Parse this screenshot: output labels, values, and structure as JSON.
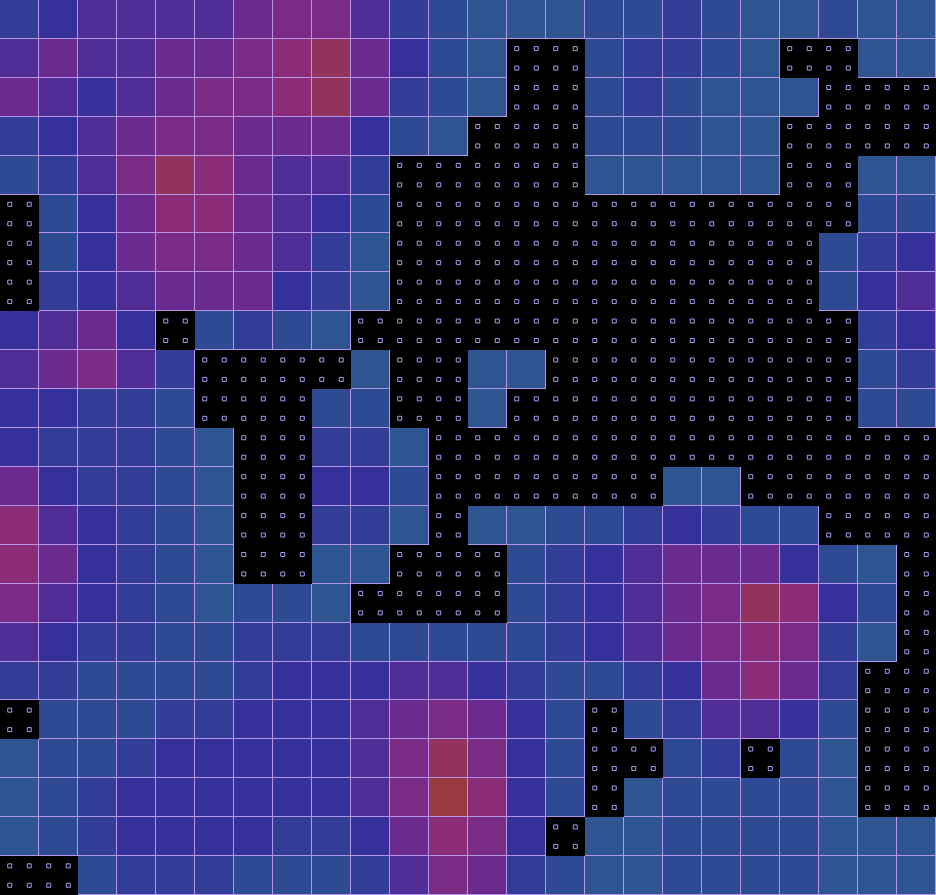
{
  "chart_data": {
    "type": "heatmap",
    "tick_labels": false,
    "zlim": [
      0,
      10
    ],
    "cells": [
      [
        3,
        4,
        5,
        5,
        5,
        5,
        6,
        7,
        7,
        5,
        3,
        2,
        1,
        1,
        1,
        2,
        2,
        3,
        2,
        1,
        1,
        2,
        1,
        1
      ],
      [
        5,
        6,
        5,
        5,
        6,
        6,
        7,
        8,
        9,
        6,
        4,
        2,
        1,
        null,
        null,
        2,
        3,
        3,
        2,
        1,
        null,
        null,
        1,
        1
      ],
      [
        6,
        5,
        4,
        5,
        6,
        7,
        7,
        8,
        9,
        6,
        3,
        2,
        1,
        null,
        null,
        2,
        3,
        2,
        1,
        1,
        1,
        null,
        null,
        null
      ],
      [
        3,
        4,
        5,
        6,
        7,
        7,
        6,
        6,
        6,
        4,
        2,
        1,
        null,
        null,
        null,
        2,
        2,
        2,
        1,
        1,
        null,
        null,
        null,
        null
      ],
      [
        2,
        3,
        5,
        7,
        9,
        8,
        6,
        5,
        5,
        3,
        null,
        null,
        null,
        null,
        null,
        1,
        1,
        1,
        1,
        1,
        null,
        null,
        1,
        1
      ],
      [
        null,
        2,
        4,
        6,
        8,
        8,
        6,
        5,
        4,
        2,
        null,
        null,
        null,
        null,
        null,
        null,
        null,
        null,
        null,
        null,
        null,
        null,
        2,
        2
      ],
      [
        null,
        2,
        4,
        6,
        7,
        7,
        6,
        5,
        3,
        1,
        null,
        null,
        null,
        null,
        null,
        null,
        null,
        null,
        null,
        null,
        null,
        2,
        3,
        4
      ],
      [
        null,
        3,
        4,
        5,
        6,
        6,
        6,
        4,
        3,
        1,
        null,
        null,
        null,
        null,
        null,
        null,
        null,
        null,
        null,
        null,
        null,
        2,
        4,
        5
      ],
      [
        4,
        5,
        6,
        4,
        null,
        2,
        3,
        2,
        1,
        null,
        null,
        null,
        null,
        null,
        null,
        null,
        null,
        null,
        null,
        null,
        null,
        null,
        3,
        4
      ],
      [
        5,
        6,
        7,
        5,
        3,
        null,
        null,
        null,
        null,
        1,
        null,
        null,
        1,
        1,
        null,
        null,
        null,
        null,
        null,
        null,
        null,
        null,
        2,
        3
      ],
      [
        4,
        4,
        3,
        3,
        2,
        null,
        null,
        null,
        2,
        2,
        null,
        null,
        1,
        null,
        null,
        null,
        null,
        null,
        null,
        null,
        null,
        null,
        2,
        2
      ],
      [
        4,
        3,
        3,
        3,
        2,
        1,
        null,
        null,
        3,
        3,
        1,
        null,
        null,
        null,
        null,
        null,
        null,
        null,
        null,
        null,
        null,
        null,
        null,
        null
      ],
      [
        6,
        4,
        3,
        3,
        2,
        1,
        null,
        null,
        4,
        4,
        2,
        null,
        null,
        null,
        null,
        null,
        null,
        1,
        1,
        null,
        null,
        null,
        null,
        null
      ],
      [
        8,
        5,
        4,
        3,
        2,
        1,
        null,
        null,
        3,
        3,
        1,
        null,
        1,
        1,
        2,
        2,
        3,
        4,
        3,
        2,
        2,
        null,
        null,
        null
      ],
      [
        8,
        6,
        4,
        3,
        2,
        1,
        null,
        null,
        1,
        1,
        null,
        null,
        null,
        2,
        3,
        4,
        5,
        6,
        6,
        6,
        4,
        2,
        1,
        null
      ],
      [
        7,
        5,
        4,
        3,
        2,
        1,
        2,
        2,
        1,
        null,
        null,
        null,
        null,
        2,
        3,
        4,
        5,
        6,
        7,
        9,
        8,
        4,
        2,
        null
      ],
      [
        5,
        4,
        3,
        3,
        2,
        2,
        3,
        3,
        3,
        2,
        2,
        2,
        2,
        2,
        3,
        4,
        5,
        6,
        7,
        8,
        7,
        3,
        1,
        null
      ],
      [
        3,
        3,
        2,
        2,
        2,
        2,
        3,
        4,
        4,
        4,
        5,
        5,
        4,
        3,
        2,
        2,
        3,
        4,
        6,
        8,
        6,
        3,
        null,
        null
      ],
      [
        null,
        2,
        2,
        2,
        3,
        3,
        4,
        4,
        4,
        5,
        6,
        7,
        6,
        4,
        2,
        null,
        2,
        3,
        5,
        5,
        4,
        2,
        null,
        null
      ],
      [
        1,
        2,
        2,
        3,
        4,
        4,
        4,
        4,
        4,
        5,
        7,
        9,
        7,
        4,
        2,
        null,
        null,
        2,
        3,
        null,
        2,
        1,
        null,
        null
      ],
      [
        1,
        2,
        3,
        4,
        4,
        4,
        4,
        4,
        4,
        5,
        7,
        10,
        8,
        4,
        2,
        null,
        1,
        2,
        2,
        2,
        2,
        1,
        null,
        null
      ],
      [
        1,
        2,
        3,
        4,
        4,
        4,
        4,
        3,
        3,
        4,
        6,
        8,
        7,
        4,
        null,
        1,
        1,
        2,
        2,
        2,
        2,
        1,
        1,
        1
      ],
      [
        null,
        null,
        2,
        3,
        3,
        3,
        2,
        2,
        2,
        3,
        5,
        7,
        6,
        3,
        2,
        1,
        1,
        2,
        2,
        2,
        2,
        1,
        1,
        1
      ]
    ]
  }
}
